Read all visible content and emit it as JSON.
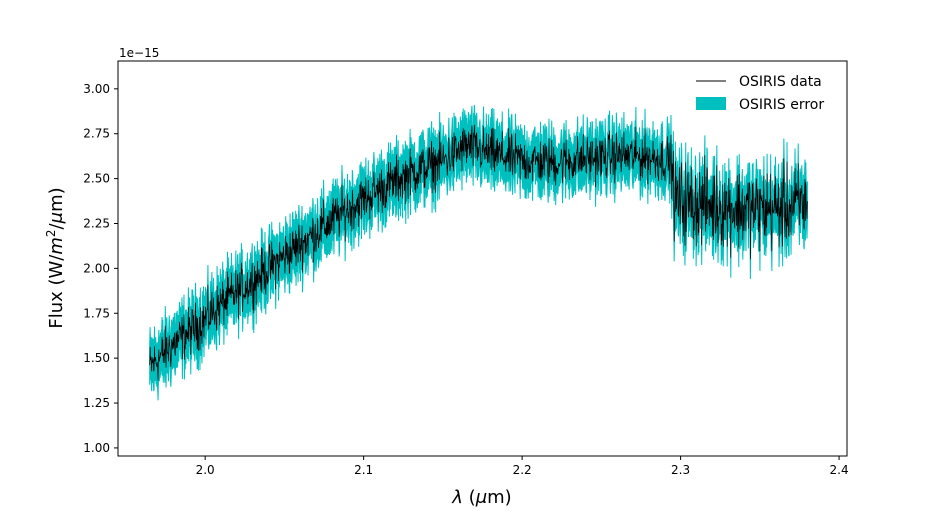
{
  "chart_data": {
    "type": "line",
    "title": "",
    "offset_text": "1e−15",
    "xlabel": {
      "prefix": "λ",
      "suffix": " (",
      "mu": "μ",
      "unit": "m)"
    },
    "ylabel": {
      "a": "Flux (W/",
      "m": "m",
      "sup": "2",
      "b": "/",
      "mu": "μ",
      "c": "m)"
    },
    "xlim": [
      1.945,
      2.405
    ],
    "ylim": [
      0.955,
      3.155
    ],
    "x_ticks": [
      2.0,
      2.1,
      2.2,
      2.3,
      2.4
    ],
    "x_tick_labels": [
      "2.0",
      "2.1",
      "2.2",
      "2.3",
      "2.4"
    ],
    "y_ticks": [
      1.0,
      1.25,
      1.5,
      1.75,
      2.0,
      2.25,
      2.5,
      2.75,
      3.0
    ],
    "y_tick_labels": [
      "1.00",
      "1.25",
      "1.50",
      "1.75",
      "2.00",
      "2.25",
      "2.50",
      "2.75",
      "3.00"
    ],
    "y_scale_factor": 1e-15,
    "grid": false,
    "legend_position": "top-right",
    "series": [
      {
        "name": "OSIRIS data",
        "kind": "line",
        "color": "#000000",
        "x_range": [
          1.965,
          2.38
        ],
        "trend_points": [
          [
            1.965,
            1.45
          ],
          [
            1.98,
            1.58
          ],
          [
            1.995,
            1.68
          ],
          [
            2.01,
            1.8
          ],
          [
            2.03,
            1.93
          ],
          [
            2.05,
            2.07
          ],
          [
            2.07,
            2.2
          ],
          [
            2.09,
            2.33
          ],
          [
            2.11,
            2.44
          ],
          [
            2.13,
            2.53
          ],
          [
            2.15,
            2.6
          ],
          [
            2.165,
            2.68
          ],
          [
            2.18,
            2.64
          ],
          [
            2.2,
            2.6
          ],
          [
            2.22,
            2.59
          ],
          [
            2.24,
            2.61
          ],
          [
            2.26,
            2.63
          ],
          [
            2.28,
            2.62
          ],
          [
            2.294,
            2.6
          ],
          [
            2.296,
            2.38
          ],
          [
            2.32,
            2.35
          ],
          [
            2.34,
            2.33
          ],
          [
            2.36,
            2.33
          ],
          [
            2.38,
            2.36
          ]
        ],
        "noise_amplitude": 0.1,
        "noise_amplitude_after_2.295": 0.17,
        "gap_at": 2.295
      },
      {
        "name": "OSIRIS error",
        "kind": "band",
        "color": "#00bfbf",
        "half_width": 0.11
      }
    ]
  }
}
